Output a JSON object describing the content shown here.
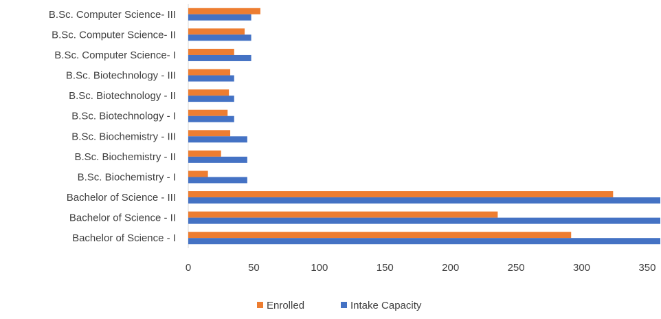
{
  "chart_data": {
    "type": "bar",
    "orientation": "horizontal",
    "title": "",
    "xlabel": "",
    "ylabel": "",
    "xlim": [
      0,
      360
    ],
    "xticks": [
      0,
      50,
      100,
      150,
      200,
      250,
      300,
      350
    ],
    "grid": false,
    "legend_position": "bottom",
    "categories": [
      "Bachelor of Science - I",
      "Bachelor of Science - II",
      "Bachelor of Science - III",
      "B.Sc. Biochemistry - I",
      "B.Sc. Biochemistry - II",
      "B.Sc. Biochemistry - III",
      "B.Sc. Biotechnology - I",
      "B.Sc. Biotechnology - II",
      "B.Sc. Biotechnology - III",
      "B.Sc. Computer Science- I",
      "B.Sc. Computer Science- II",
      "B.Sc. Computer Science- III"
    ],
    "series": [
      {
        "name": "Enrolled",
        "color": "#ED7D31",
        "values": [
          292,
          236,
          324,
          15,
          25,
          32,
          30,
          31,
          32,
          35,
          43,
          55
        ]
      },
      {
        "name": "Intake Capacity",
        "color": "#4472C4",
        "values": [
          360,
          360,
          360,
          45,
          45,
          45,
          35,
          35,
          35,
          48,
          48,
          48
        ]
      }
    ]
  }
}
